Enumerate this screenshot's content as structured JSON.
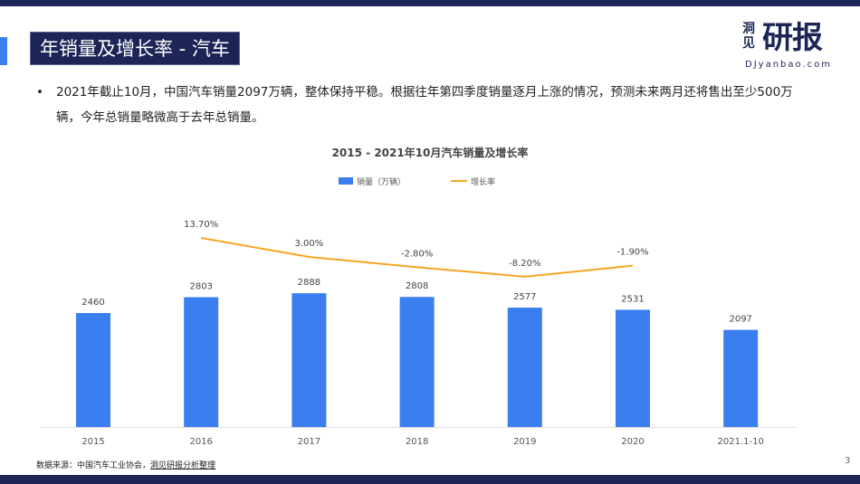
{
  "header": {
    "title": "年销量及增长率 - 汽车"
  },
  "logo": {
    "small": "洞见",
    "big": "研报",
    "url": "DJyanbao.com"
  },
  "body": {
    "bullet": "2021年截止10月，中国汽车销量2097万辆，整体保持平稳。根据往年第四季度销量逐月上涨的情况，预测未来两月还将售出至少500万辆，今年总销量略微高于去年总销量。"
  },
  "footer": {
    "source_prefix": "数据来源：中国汽车工业协会，",
    "source_link": "洞见研报分析整理",
    "page": "3"
  },
  "chart_data": {
    "type": "bar+line",
    "title": "2015 - 2021年10月汽车销量及增长率",
    "categories": [
      "2015",
      "2016",
      "2017",
      "2018",
      "2019",
      "2020",
      "2021.1-10"
    ],
    "series": [
      {
        "name": "销量（万辆）",
        "type": "bar",
        "color": "#3b7ef0",
        "values": [
          2460,
          2803,
          2888,
          2808,
          2577,
          2531,
          2097
        ],
        "labels": [
          "2460",
          "2803",
          "2888",
          "2808",
          "2577",
          "2531",
          "2097"
        ]
      },
      {
        "name": "增长率",
        "type": "line",
        "color": "#f5a623",
        "values": [
          null,
          13.7,
          3.0,
          -2.8,
          -8.2,
          -1.9,
          null
        ],
        "labels": [
          "",
          "13.70%",
          "3.00%",
          "-2.80%",
          "-8.20%",
          "-1.90%",
          ""
        ]
      }
    ],
    "legend": "top-center",
    "grid": false,
    "yaxis_visible": false
  }
}
